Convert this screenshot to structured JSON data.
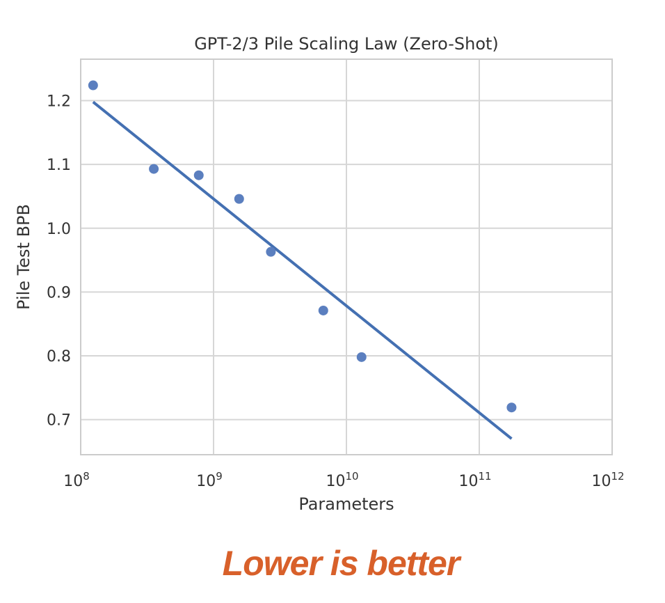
{
  "chart_data": {
    "type": "scatter",
    "title": "GPT-2/3 Pile Scaling Law (Zero-Shot)",
    "xlabel": "Parameters",
    "ylabel": "Pile Test BPB",
    "xscale": "log",
    "xlim": [
      100000000,
      1000000000000
    ],
    "ylim": [
      0.645,
      1.265
    ],
    "grid": true,
    "x_ticks": [
      {
        "base": "10",
        "exp": "8",
        "value": 100000000
      },
      {
        "base": "10",
        "exp": "9",
        "value": 1000000000
      },
      {
        "base": "10",
        "exp": "10",
        "value": 10000000000
      },
      {
        "base": "10",
        "exp": "11",
        "value": 100000000000
      },
      {
        "base": "10",
        "exp": "12",
        "value": 1000000000000
      }
    ],
    "y_ticks": [
      "0.7",
      "0.8",
      "0.9",
      "1.0",
      "1.1",
      "1.2"
    ],
    "series": [
      {
        "kind": "scatter",
        "color": "#5b7fbf",
        "points": [
          {
            "x": 124000000,
            "y": 1.224
          },
          {
            "x": 355000000,
            "y": 1.093
          },
          {
            "x": 774000000,
            "y": 1.083
          },
          {
            "x": 1558000000,
            "y": 1.046
          },
          {
            "x": 2700000000,
            "y": 0.963
          },
          {
            "x": 6700000000,
            "y": 0.871
          },
          {
            "x": 13000000000,
            "y": 0.798
          },
          {
            "x": 175000000000,
            "y": 0.719
          }
        ]
      },
      {
        "kind": "line",
        "color": "#4470b2",
        "points": [
          {
            "x": 124000000,
            "y": 1.198
          },
          {
            "x": 175000000000,
            "y": 0.67
          }
        ]
      }
    ]
  },
  "caption": {
    "text": "Lower is better",
    "color": "#d8602a"
  }
}
